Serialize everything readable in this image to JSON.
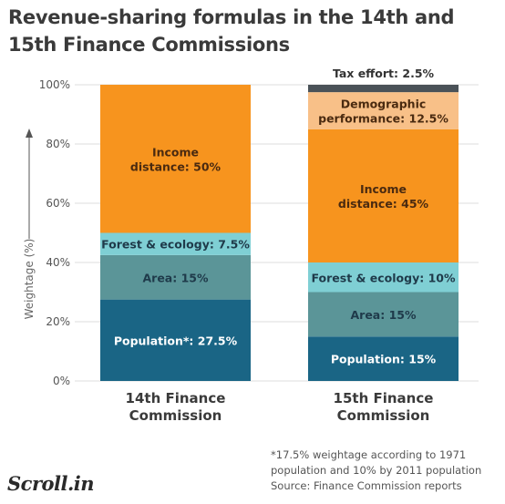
{
  "title": "Revenue-sharing formulas in the 14th and 15th Finance Commissions",
  "footnote": [
    "*17.5% weightage according to 1971",
    "population and 10% by 2011 population",
    "Source:  Finance Commission reports"
  ],
  "logo": "Scroll.in",
  "chart_data": {
    "type": "bar",
    "stacked": true,
    "ylabel": "Weightage (%)",
    "ylim": [
      0,
      100
    ],
    "yticks": [
      "0%",
      "20%",
      "40%",
      "60%",
      "80%",
      "100%"
    ],
    "categories": [
      [
        "14th Finance",
        "Commission"
      ],
      [
        "15th Finance",
        "Commission"
      ]
    ],
    "columns": [
      {
        "segments": [
          {
            "label": [
              "Population*: 27.5%"
            ],
            "value": 27.5,
            "color": "#1a6585",
            "text_color": "#ffffff"
          },
          {
            "label": [
              "Area: 15%"
            ],
            "value": 15,
            "color": "#5b9598",
            "text_color": "#1f3a4a"
          },
          {
            "label": [
              "Forest & ecology: 7.5%"
            ],
            "value": 7.5,
            "color": "#7fcfd4",
            "text_color": "#1f3a4a"
          },
          {
            "label": [
              "Income",
              "distance: 50%"
            ],
            "value": 50,
            "color": "#f7941e",
            "text_color": "#4a2a10"
          }
        ]
      },
      {
        "segments": [
          {
            "label": [
              "Population: 15%"
            ],
            "value": 15,
            "color": "#1a6585",
            "text_color": "#ffffff"
          },
          {
            "label": [
              "Area: 15%"
            ],
            "value": 15,
            "color": "#5b9598",
            "text_color": "#1f3a4a"
          },
          {
            "label": [
              "Forest & ecology: 10%"
            ],
            "value": 10,
            "color": "#7fcfd4",
            "text_color": "#1f3a4a"
          },
          {
            "label": [
              "Income",
              "distance: 45%"
            ],
            "value": 45,
            "color": "#f7941e",
            "text_color": "#4a2a10"
          },
          {
            "label": [
              "Demographic",
              "performance: 12.5%"
            ],
            "value": 12.5,
            "color": "#f8c088",
            "text_color": "#4a2a10"
          },
          {
            "label": [
              "Tax effort: 2.5%"
            ],
            "value": 2.5,
            "color": "#4a5258",
            "text_color": "#333333",
            "label_position": "above"
          }
        ]
      }
    ]
  }
}
